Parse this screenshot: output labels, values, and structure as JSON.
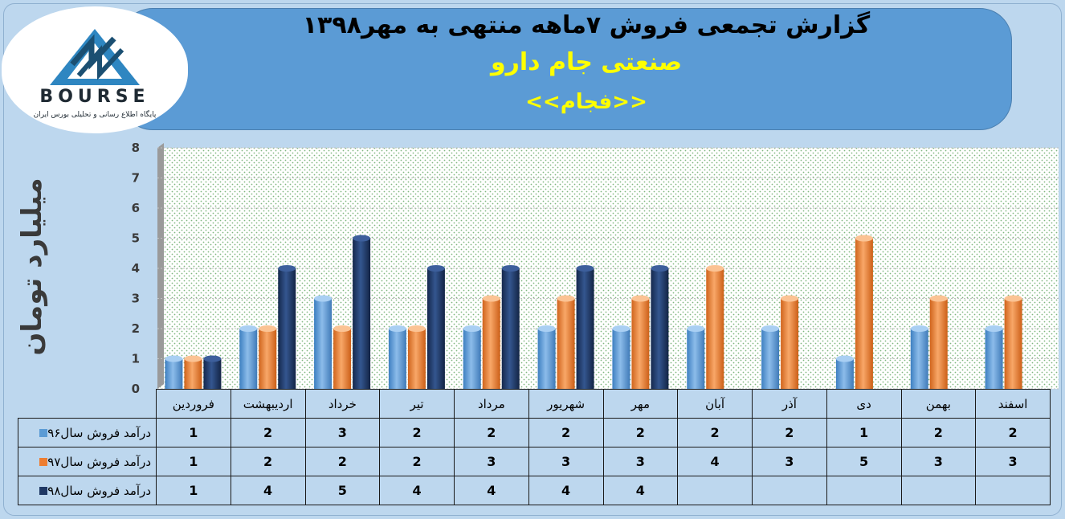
{
  "header": {
    "title_line1": "گزارش تجمعی فروش ۷ماهه منتهی به مهر۱۳۹۸",
    "title_line2": "صنعتی جام دارو",
    "title_line3": "<<فجام>>"
  },
  "logo": {
    "text": "BOURSE",
    "subtitle": "پایگاه اطلاع رسانی و تحلیلی بورس ایران"
  },
  "colors": {
    "series96": "#5b9bd5",
    "series97": "#ed7d31",
    "series98": "#1f3864"
  },
  "chart_data": {
    "type": "bar",
    "ylabel": "میلیارد تومان",
    "ylim": [
      0,
      8
    ],
    "yticks": [
      0,
      1,
      2,
      3,
      4,
      5,
      6,
      7,
      8
    ],
    "categories": [
      "فروردین",
      "اردیبهشت",
      "خرداد",
      "تیر",
      "مرداد",
      "شهریور",
      "مهر",
      "آبان",
      "آذر",
      "دی",
      "بهمن",
      "اسفند"
    ],
    "series": [
      {
        "name": "درآمد فروش سال۹۶",
        "values": [
          1,
          2,
          3,
          2,
          2,
          2,
          2,
          2,
          2,
          1,
          2,
          2
        ]
      },
      {
        "name": "درآمد فروش سال۹۷",
        "values": [
          1,
          2,
          2,
          2,
          3,
          3,
          3,
          4,
          3,
          5,
          3,
          3
        ]
      },
      {
        "name": "درآمد فروش  سال۹۸",
        "values": [
          1,
          4,
          5,
          4,
          4,
          4,
          4,
          null,
          null,
          null,
          null,
          null
        ]
      }
    ],
    "grid": true,
    "legend": "table-bottom"
  }
}
